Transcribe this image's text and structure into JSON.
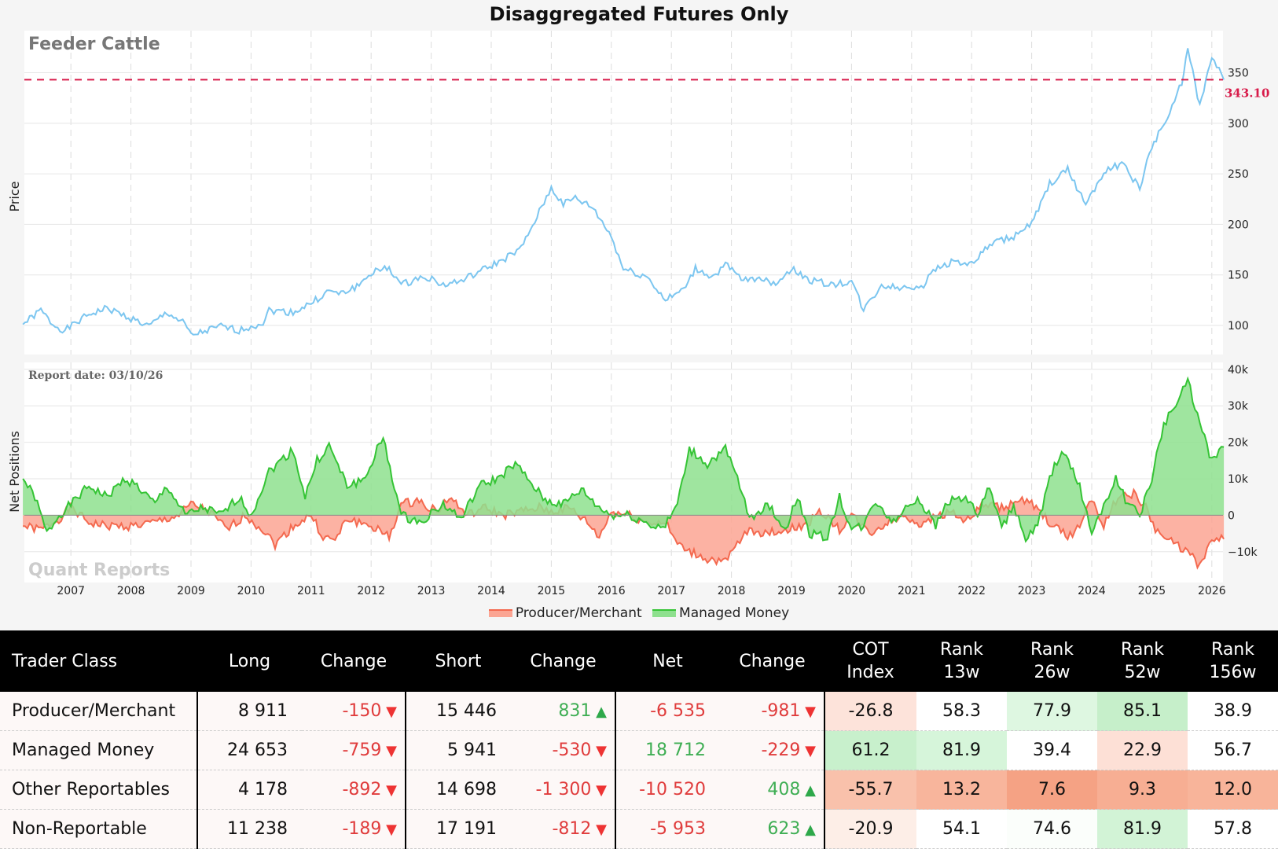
{
  "title": "Disaggregated Futures Only",
  "commodity": "Feeder Cattle",
  "report_date": "Report date: 03/10/26",
  "watermark": "Quant Reports",
  "chart_data": [
    {
      "type": "line",
      "ylabel": "Price",
      "ylim": [
        85,
        380
      ],
      "yticks": [
        100,
        150,
        200,
        250,
        300,
        350
      ],
      "grid": true,
      "last_price_label": "343.10",
      "last_price": 343.1,
      "colors": {
        "price": "#7cc6f0",
        "last": "#d81b4a"
      },
      "series": [
        {
          "x": [
            2006.2,
            2006.5,
            2006.7,
            2006.9,
            2007.3,
            2007.6,
            2008.0,
            2008.3,
            2008.6,
            2008.9,
            2009.0,
            2009.5,
            2009.8,
            2010.2,
            2010.3,
            2010.7,
            2011.0,
            2011.3,
            2011.5,
            2011.8,
            2012.0,
            2012.3,
            2012.5,
            2012.9,
            2013.2,
            2013.5,
            2013.9,
            2014.2,
            2014.5,
            2014.8,
            2015.0,
            2015.2,
            2015.4,
            2015.7,
            2016.0,
            2016.2,
            2016.6,
            2016.9,
            2017.2,
            2017.4,
            2017.7,
            2017.9,
            2018.2,
            2018.5,
            2018.7,
            2019.0,
            2019.3,
            2019.7,
            2020.0,
            2020.2,
            2020.5,
            2020.8,
            2021.2,
            2021.4,
            2021.7,
            2022.0,
            2022.3,
            2022.7,
            2023.0,
            2023.3,
            2023.6,
            2023.9,
            2024.2,
            2024.5,
            2024.8,
            2025.0,
            2025.3,
            2025.5,
            2025.6,
            2025.8,
            2025.9,
            2026.0,
            2026.2
          ],
          "y": [
            101,
            115,
            101,
            95,
            111,
            117,
            107,
            99,
            113,
            101,
            90,
            99,
            95,
            103,
            115,
            113,
            122,
            134,
            131,
            140,
            152,
            157,
            140,
            149,
            140,
            144,
            156,
            165,
            176,
            212,
            236,
            220,
            226,
            216,
            188,
            156,
            148,
            125,
            135,
            156,
            148,
            160,
            144,
            148,
            140,
            156,
            145,
            140,
            144,
            115,
            140,
            137,
            140,
            156,
            164,
            160,
            180,
            188,
            200,
            240,
            254,
            220,
            252,
            260,
            236,
            277,
            309,
            341,
            373,
            317,
            341,
            365,
            343.1
          ]
        }
      ]
    },
    {
      "type": "area",
      "ylabel": "Net Positions",
      "ylim": [
        -18000,
        42000
      ],
      "yticks": [
        -10000,
        0,
        10000,
        20000,
        30000,
        40000
      ],
      "ytick_labels": [
        "−10k",
        "0",
        "10k",
        "20k",
        "30k",
        "40k"
      ],
      "xticks": [
        "2007",
        "2008",
        "2009",
        "2010",
        "2011",
        "2012",
        "2013",
        "2014",
        "2015",
        "2016",
        "2017",
        "2018",
        "2019",
        "2020",
        "2021",
        "2022",
        "2023",
        "2024",
        "2025",
        "2026"
      ],
      "grid": true,
      "legend": "bottom",
      "series": [
        {
          "name": "Producer/Merchant",
          "color": "#f4694f",
          "fill": "#fba593",
          "x": [
            2006.2,
            2006.5,
            2006.8,
            2007.0,
            2007.3,
            2007.6,
            2008.0,
            2008.4,
            2008.8,
            2009.0,
            2009.3,
            2009.6,
            2009.9,
            2010.2,
            2010.4,
            2010.7,
            2011.0,
            2011.2,
            2011.4,
            2011.6,
            2012.0,
            2012.3,
            2012.5,
            2012.8,
            2013.1,
            2013.3,
            2013.6,
            2013.9,
            2014.2,
            2014.5,
            2014.8,
            2015.0,
            2015.3,
            2015.6,
            2015.8,
            2016.0,
            2016.3,
            2016.6,
            2016.9,
            2017.1,
            2017.3,
            2017.6,
            2017.9,
            2018.1,
            2018.3,
            2018.6,
            2018.9,
            2019.2,
            2019.5,
            2019.8,
            2020.0,
            2020.3,
            2020.6,
            2020.9,
            2021.2,
            2021.4,
            2021.7,
            2021.9,
            2022.2,
            2022.5,
            2022.8,
            2023.0,
            2023.3,
            2023.6,
            2023.8,
            2024.0,
            2024.2,
            2024.4,
            2024.7,
            2024.9,
            2025.1,
            2025.4,
            2025.6,
            2025.8,
            2026.0,
            2026.2
          ],
          "y": [
            -3000,
            -4000,
            -1000,
            2000,
            -2000,
            -3000,
            -3000,
            -2000,
            0,
            3000,
            1000,
            -4000,
            0,
            -4000,
            -8000,
            -3000,
            0,
            -6000,
            -7000,
            -1000,
            -3000,
            -6000,
            3000,
            4000,
            1000,
            5000,
            0,
            2000,
            0,
            1000,
            2000,
            1000,
            2000,
            -2000,
            -6000,
            1000,
            0,
            -2000,
            -2000,
            -8000,
            -10000,
            -12000,
            -13000,
            -8000,
            -4000,
            -5000,
            -4000,
            -3000,
            1000,
            -4000,
            0,
            -5000,
            -2000,
            0,
            -3000,
            0,
            1000,
            -2000,
            3000,
            2000,
            4000,
            3000,
            -2000,
            -6000,
            -3000,
            5000,
            -3000,
            4000,
            6000,
            2000,
            -5000,
            -8000,
            -10000,
            -14000,
            -7000,
            -6535
          ]
        },
        {
          "name": "Managed Money",
          "color": "#35c435",
          "fill": "#8ee08e",
          "x": [
            2006.2,
            2006.4,
            2006.6,
            2006.8,
            2007.0,
            2007.3,
            2007.6,
            2007.9,
            2008.1,
            2008.4,
            2008.6,
            2008.9,
            2009.2,
            2009.5,
            2009.8,
            2010.0,
            2010.3,
            2010.7,
            2010.9,
            2011.1,
            2011.3,
            2011.6,
            2011.9,
            2012.1,
            2012.2,
            2012.5,
            2012.8,
            2013.2,
            2013.5,
            2013.8,
            2014.1,
            2014.4,
            2014.6,
            2014.9,
            2015.2,
            2015.5,
            2015.8,
            2016.0,
            2016.3,
            2016.7,
            2016.9,
            2017.1,
            2017.3,
            2017.6,
            2017.9,
            2018.1,
            2018.3,
            2018.6,
            2018.9,
            2019.1,
            2019.3,
            2019.6,
            2019.8,
            2020.0,
            2020.2,
            2020.4,
            2020.7,
            2020.9,
            2021.1,
            2021.4,
            2021.6,
            2021.9,
            2022.1,
            2022.3,
            2022.5,
            2022.7,
            2022.9,
            2023.1,
            2023.3,
            2023.5,
            2023.8,
            2024.0,
            2024.2,
            2024.4,
            2024.6,
            2024.8,
            2025.0,
            2025.2,
            2025.4,
            2025.6,
            2025.8,
            2026.0,
            2026.2
          ],
          "y": [
            10000,
            5000,
            -5000,
            0,
            3000,
            8000,
            5000,
            10000,
            8000,
            3000,
            8000,
            0,
            2000,
            0,
            5000,
            0,
            12000,
            18000,
            5000,
            15000,
            19000,
            8000,
            10000,
            18000,
            21000,
            0,
            -2000,
            3000,
            -1000,
            8000,
            10000,
            14000,
            10000,
            4000,
            3000,
            7000,
            2000,
            0,
            0,
            -3000,
            -3000,
            3000,
            18000,
            14000,
            18000,
            10000,
            -1000,
            3000,
            -4000,
            5000,
            -5000,
            -6000,
            5000,
            -4000,
            -3000,
            4000,
            -2000,
            2000,
            5000,
            -3000,
            4000,
            5000,
            0,
            8000,
            -4000,
            3000,
            -7000,
            -3000,
            10000,
            18000,
            8000,
            -5000,
            3000,
            10000,
            3000,
            0,
            10000,
            25000,
            30000,
            37000,
            25000,
            15000,
            18712
          ]
        }
      ]
    }
  ],
  "table": {
    "headers": [
      "Trader Class",
      "Long",
      "Change",
      "Short",
      "Change",
      "Net",
      "Change",
      "COT\nIndex",
      "Rank\n13w",
      "Rank\n26w",
      "Rank\n52w",
      "Rank\n156w"
    ],
    "rows": [
      {
        "name": "Producer/Merchant",
        "long": "8 911",
        "long_chg": "-150",
        "long_dir": "down",
        "short": "15 446",
        "short_chg": "831",
        "short_dir": "up",
        "net": "-6 535",
        "net_chg": "-981",
        "net_dir": "down",
        "cot": "-26.8",
        "r13": "58.3",
        "r26": "77.9",
        "r52": "85.1",
        "r156": "38.9",
        "colors": [
          "#fde3da",
          "#ffffff",
          "#def7e1",
          "#c6efca",
          "#ffffff"
        ]
      },
      {
        "name": "Managed Money",
        "long": "24 653",
        "long_chg": "-759",
        "long_dir": "down",
        "short": "5 941",
        "short_chg": "-530",
        "short_dir": "down",
        "net": "18 712",
        "net_chg": "-229",
        "net_dir": "down",
        "cot": "61.2",
        "r13": "81.9",
        "r26": "39.4",
        "r52": "22.9",
        "r156": "56.7",
        "colors": [
          "#c8f0cc",
          "#d6f5da",
          "#ffffff",
          "#fde0d6",
          "#ffffff"
        ]
      },
      {
        "name": "Other Reportables",
        "long": "4 178",
        "long_chg": "-892",
        "long_dir": "down",
        "short": "14 698",
        "short_chg": "-1 300",
        "short_dir": "down",
        "net": "-10 520",
        "net_chg": "408",
        "net_dir": "up",
        "cot": "-55.7",
        "r13": "13.2",
        "r26": "7.6",
        "r52": "9.3",
        "r156": "12.0",
        "colors": [
          "#f9c1ab",
          "#f8b59c",
          "#f5a284",
          "#f7ae93",
          "#f8b49a"
        ]
      },
      {
        "name": "Non-Reportable",
        "long": "11 238",
        "long_chg": "-189",
        "long_dir": "down",
        "short": "17 191",
        "short_chg": "-812",
        "short_dir": "down",
        "net": "-5 953",
        "net_chg": "623",
        "net_dir": "up",
        "cot": "-20.9",
        "r13": "54.1",
        "r26": "74.6",
        "r52": "81.9",
        "r156": "57.8",
        "colors": [
          "#fdeee7",
          "#ffffff",
          "#fbfefb",
          "#d2f3d6",
          "#ffffff"
        ]
      }
    ]
  }
}
